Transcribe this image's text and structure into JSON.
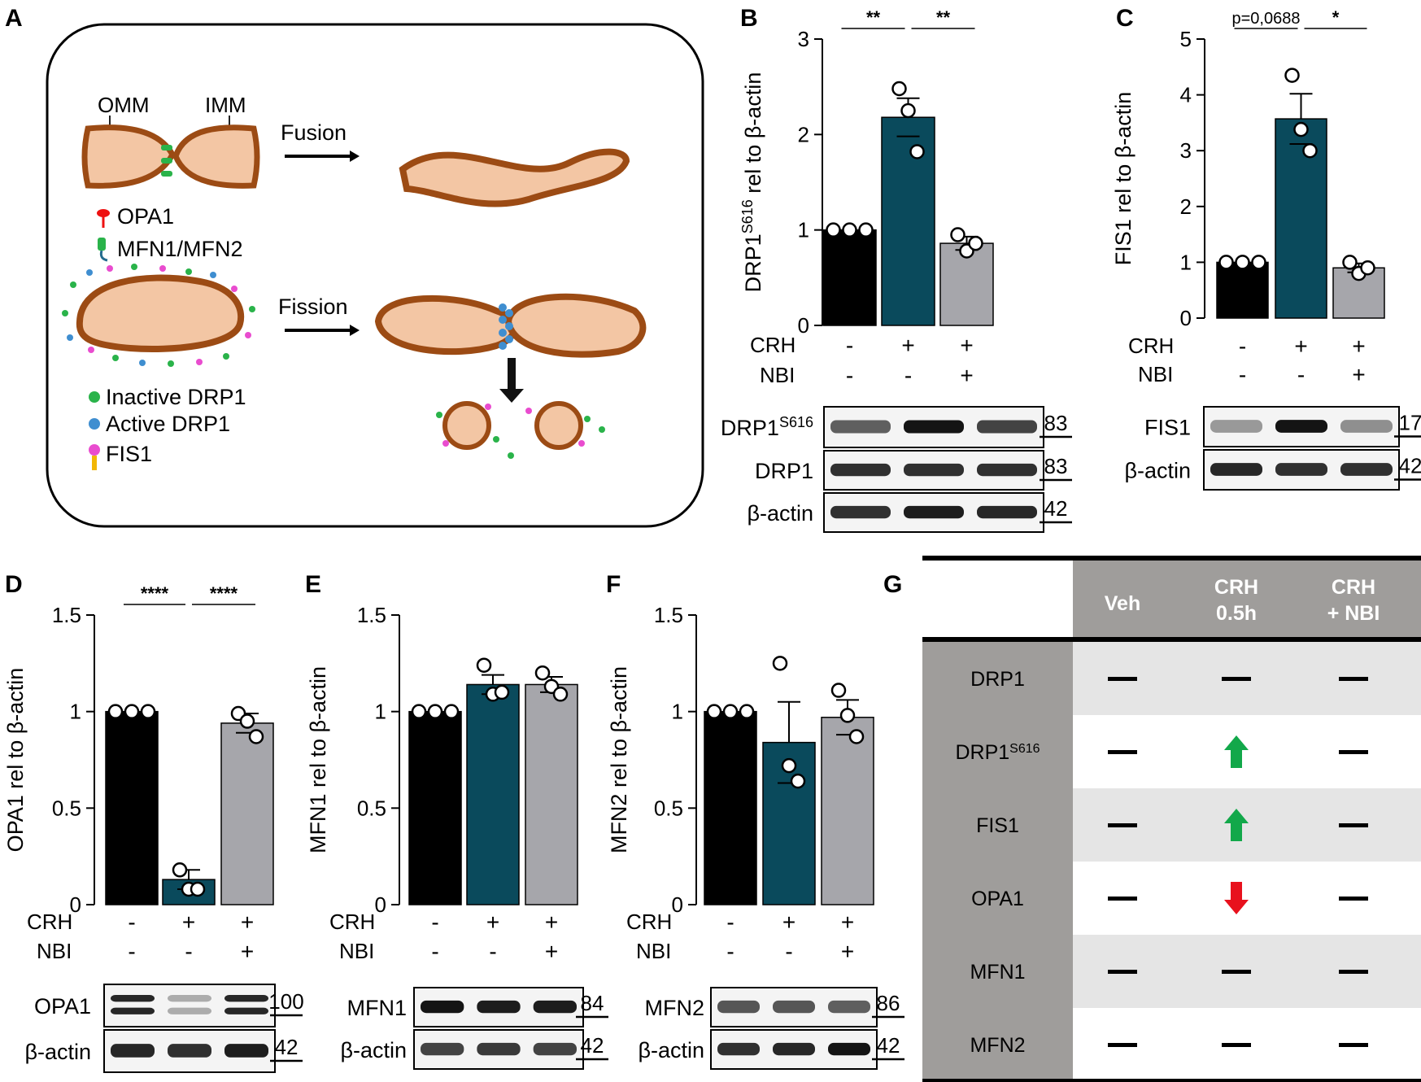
{
  "panel_letters": {
    "a": "A",
    "b": "B",
    "c": "C",
    "d": "D",
    "e": "E",
    "f": "F",
    "g": "G"
  },
  "colors": {
    "veh": "#000000",
    "crh": "#0a4a5c",
    "nbi": "#a6a6ab",
    "up": "#12a84a",
    "down": "#e8111d",
    "table_dark": "#9f9d9b",
    "table_light": "#e5e5e5"
  },
  "schematic": {
    "omm": "OMM",
    "imm": "IMM",
    "fusion": "Fusion",
    "fission": "Fission",
    "legend": [
      "OPA1",
      "MFN1/MFN2",
      "Inactive DRP1",
      "Active DRP1",
      "FIS1"
    ]
  },
  "conditions": {
    "row1": "CRH",
    "row2": "NBI",
    "crh_signs": [
      "-",
      "+",
      "+"
    ],
    "nbi_signs": [
      "-",
      "-",
      "+"
    ]
  },
  "chart_data": [
    {
      "panel": "B",
      "type": "bar",
      "categories": [
        "Veh",
        "CRH",
        "CRH+NBI"
      ],
      "ylabel_main": "DRP1",
      "ylabel_sup": "S616",
      "ylabel_rest": " rel to β-actin",
      "ylim": [
        0,
        3
      ],
      "yticks": [
        0,
        1,
        2,
        3
      ],
      "ytick_labels": [
        "0",
        "1",
        "2",
        "3"
      ],
      "values": [
        1.0,
        2.18,
        0.86
      ],
      "errors": [
        0,
        0.2,
        0.07
      ],
      "points": [
        [
          1,
          1,
          1
        ],
        [
          2.48,
          2.25,
          1.82
        ],
        [
          0.95,
          0.78,
          0.86
        ]
      ],
      "sig": [
        {
          "from": 0,
          "to": 1,
          "label": "**"
        },
        {
          "from": 1,
          "to": 2,
          "label": "**"
        }
      ]
    },
    {
      "panel": "C",
      "type": "bar",
      "categories": [
        "Veh",
        "CRH",
        "CRH+NBI"
      ],
      "ylabel": "FIS1 rel to β-actin",
      "ylim": [
        0,
        5
      ],
      "yticks": [
        0,
        1,
        2,
        3,
        4,
        5
      ],
      "ytick_labels": [
        "0",
        "1",
        "2",
        "3",
        "4",
        "5"
      ],
      "values": [
        1.0,
        3.57,
        0.9
      ],
      "errors": [
        0,
        0.45,
        0.08
      ],
      "points": [
        [
          1,
          1,
          1
        ],
        [
          4.35,
          3.38,
          3.0
        ],
        [
          1.0,
          0.8,
          0.9
        ]
      ],
      "sig": [
        {
          "from": 0,
          "to": 1,
          "label": "p=0,0688"
        },
        {
          "from": 1,
          "to": 2,
          "label": "*"
        }
      ]
    },
    {
      "panel": "D",
      "type": "bar",
      "categories": [
        "Veh",
        "CRH",
        "CRH+NBI"
      ],
      "ylabel": "OPA1 rel to β-actin",
      "ylim": [
        0,
        1.5
      ],
      "yticks": [
        0,
        0.5,
        1,
        1.5
      ],
      "ytick_labels": [
        "0",
        "0.5",
        "1",
        "1.5"
      ],
      "values": [
        1.0,
        0.13,
        0.94
      ],
      "errors": [
        0,
        0.05,
        0.05
      ],
      "points": [
        [
          1,
          1,
          1
        ],
        [
          0.18,
          0.08,
          0.08
        ],
        [
          0.99,
          0.95,
          0.87
        ]
      ],
      "sig": [
        {
          "from": 0,
          "to": 1,
          "label": "****"
        },
        {
          "from": 1,
          "to": 2,
          "label": "****"
        }
      ]
    },
    {
      "panel": "E",
      "type": "bar",
      "categories": [
        "Veh",
        "CRH",
        "CRH+NBI"
      ],
      "ylabel": "MFN1 rel to β-actin",
      "ylim": [
        0,
        1.5
      ],
      "yticks": [
        0,
        0.5,
        1,
        1.5
      ],
      "ytick_labels": [
        "0",
        "0.5",
        "1",
        "1.5"
      ],
      "values": [
        1.0,
        1.14,
        1.14
      ],
      "errors": [
        0,
        0.05,
        0.04
      ],
      "points": [
        [
          1,
          1,
          1
        ],
        [
          1.24,
          1.09,
          1.1
        ],
        [
          1.2,
          1.13,
          1.09
        ]
      ],
      "sig": []
    },
    {
      "panel": "F",
      "type": "bar",
      "categories": [
        "Veh",
        "CRH",
        "CRH+NBI"
      ],
      "ylabel": "MFN2 rel to β-actin",
      "ylim": [
        0,
        1.5
      ],
      "yticks": [
        0,
        0.5,
        1,
        1.5
      ],
      "ytick_labels": [
        "0",
        "0.5",
        "1",
        "1.5"
      ],
      "values": [
        1.0,
        0.84,
        0.97
      ],
      "errors": [
        0,
        0.21,
        0.09
      ],
      "points": [
        [
          1,
          1,
          1
        ],
        [
          1.25,
          0.72,
          0.64
        ],
        [
          1.11,
          0.98,
          0.87
        ]
      ],
      "sig": []
    }
  ],
  "blots": {
    "b": [
      {
        "label": "DRP1",
        "sup": "S616",
        "kda": "83"
      },
      {
        "label": "DRP1",
        "kda": "83"
      },
      {
        "label": "β-actin",
        "kda": "42"
      }
    ],
    "c": [
      {
        "label": "FIS1",
        "kda": "17"
      },
      {
        "label": "β-actin",
        "kda": "42"
      }
    ],
    "d": [
      {
        "label": "OPA1",
        "kda": "100"
      },
      {
        "label": "β-actin",
        "kda": "42"
      }
    ],
    "e": [
      {
        "label": "MFN1",
        "kda": "84"
      },
      {
        "label": "β-actin",
        "kda": "42"
      }
    ],
    "f": [
      {
        "label": "MFN2",
        "kda": "86"
      },
      {
        "label": "β-actin",
        "kda": "42"
      }
    ]
  },
  "summary_table": {
    "headers": [
      "Veh",
      "CRH\n0.5h",
      "CRH\n+ NBI"
    ],
    "rows": [
      {
        "label": "DRP1",
        "cells": [
          "none",
          "none",
          "none"
        ]
      },
      {
        "label": "DRP1",
        "sup": "S616",
        "cells": [
          "none",
          "up",
          "none"
        ]
      },
      {
        "label": "FIS1",
        "cells": [
          "none",
          "up",
          "none"
        ]
      },
      {
        "label": "OPA1",
        "cells": [
          "none",
          "down",
          "none"
        ]
      },
      {
        "label": "MFN1",
        "cells": [
          "none",
          "none",
          "none"
        ]
      },
      {
        "label": "MFN2",
        "cells": [
          "none",
          "none",
          "none"
        ]
      }
    ]
  }
}
